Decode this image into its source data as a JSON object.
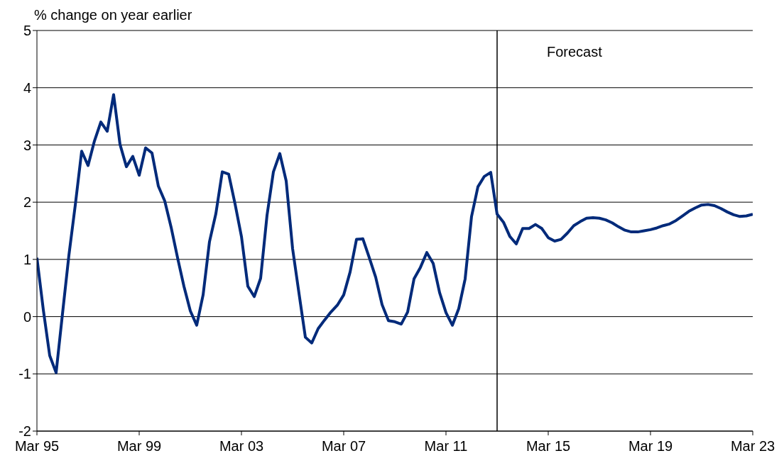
{
  "chart_data": {
    "type": "line",
    "ylabel": "% change on year earlier",
    "x": [
      "1995-03",
      "1995-06",
      "1995-09",
      "1995-12",
      "1996-03",
      "1996-06",
      "1996-09",
      "1996-12",
      "1997-03",
      "1997-06",
      "1997-09",
      "1997-12",
      "1998-03",
      "1998-06",
      "1998-09",
      "1998-12",
      "1999-03",
      "1999-06",
      "1999-09",
      "1999-12",
      "2000-03",
      "2000-06",
      "2000-09",
      "2000-12",
      "2001-03",
      "2001-06",
      "2001-09",
      "2001-12",
      "2002-03",
      "2002-06",
      "2002-09",
      "2002-12",
      "2003-03",
      "2003-06",
      "2003-09",
      "2003-12",
      "2004-03",
      "2004-06",
      "2004-09",
      "2004-12",
      "2005-03",
      "2005-06",
      "2005-09",
      "2005-12",
      "2006-03",
      "2006-06",
      "2006-09",
      "2006-12",
      "2007-03",
      "2007-06",
      "2007-09",
      "2007-12",
      "2008-03",
      "2008-06",
      "2008-09",
      "2008-12",
      "2009-03",
      "2009-06",
      "2009-09",
      "2009-12",
      "2010-03",
      "2010-06",
      "2010-09",
      "2010-12",
      "2011-03",
      "2011-06",
      "2011-09",
      "2011-12",
      "2012-03",
      "2012-06",
      "2012-09",
      "2012-12",
      "2013-03",
      "2013-06",
      "2013-09",
      "2013-12",
      "2014-03",
      "2014-06",
      "2014-09",
      "2014-12",
      "2015-03",
      "2015-06",
      "2015-09",
      "2015-12",
      "2016-03",
      "2016-06",
      "2016-09",
      "2016-12",
      "2017-03",
      "2017-06",
      "2017-09",
      "2017-12",
      "2018-03",
      "2018-06",
      "2018-09",
      "2018-12",
      "2019-03",
      "2019-06",
      "2019-09",
      "2019-12",
      "2020-03",
      "2020-06",
      "2020-09",
      "2020-12",
      "2021-03",
      "2021-06",
      "2021-09",
      "2021-12",
      "2022-03",
      "2022-06",
      "2022-09",
      "2022-12",
      "2023-03"
    ],
    "series": [
      {
        "color": "#002a7a",
        "values": [
          1.03,
          0.12,
          -0.68,
          -0.98,
          0.05,
          1.07,
          1.95,
          2.89,
          2.64,
          3.07,
          3.4,
          3.24,
          3.88,
          3.01,
          2.62,
          2.8,
          2.47,
          2.95,
          2.86,
          2.28,
          2.02,
          1.56,
          1.03,
          0.53,
          0.1,
          -0.15,
          0.38,
          1.31,
          1.8,
          2.53,
          2.49,
          1.97,
          1.4,
          0.53,
          0.35,
          0.67,
          1.77,
          2.53,
          2.85,
          2.37,
          1.19,
          0.41,
          -0.36,
          -0.46,
          -0.21,
          -0.06,
          0.08,
          0.2,
          0.38,
          0.78,
          1.35,
          1.36,
          1.03,
          0.69,
          0.21,
          -0.07,
          -0.09,
          -0.13,
          0.08,
          0.66,
          0.86,
          1.12,
          0.93,
          0.42,
          0.07,
          -0.15,
          0.14,
          0.66,
          1.75,
          2.27,
          2.45,
          2.52,
          1.79,
          1.65,
          1.4,
          1.27,
          1.54,
          1.54,
          1.61,
          1.54,
          1.38,
          1.32,
          1.35,
          1.46,
          1.59,
          1.66,
          1.72,
          1.73,
          1.72,
          1.69,
          1.64,
          1.57,
          1.51,
          1.48,
          1.48,
          1.5,
          1.52,
          1.55,
          1.59,
          1.62,
          1.68,
          1.76,
          1.84,
          1.9,
          1.95,
          1.96,
          1.94,
          1.89,
          1.83,
          1.78,
          1.75,
          1.76,
          1.79
        ]
      }
    ],
    "xlim": [
      "1995-03",
      "2023-03"
    ],
    "xticks": [
      {
        "value": "1995-03",
        "label": "Mar 95"
      },
      {
        "value": "1999-03",
        "label": "Mar 99"
      },
      {
        "value": "2003-03",
        "label": "Mar 03"
      },
      {
        "value": "2007-03",
        "label": "Mar 07"
      },
      {
        "value": "2011-03",
        "label": "Mar 11"
      },
      {
        "value": "2015-03",
        "label": "Mar 15"
      },
      {
        "value": "2019-03",
        "label": "Mar 19"
      },
      {
        "value": "2023-03",
        "label": "Mar 23"
      }
    ],
    "ylim": [
      -2,
      5
    ],
    "yticks": [
      -2,
      -1,
      0,
      1,
      2,
      3,
      4,
      5
    ],
    "grid": "y",
    "marker": "none",
    "line_style": "solid",
    "ref_lines": [
      {
        "axis": "x",
        "value": "2013-03",
        "label": "Forecast",
        "color": "#000000"
      }
    ]
  }
}
